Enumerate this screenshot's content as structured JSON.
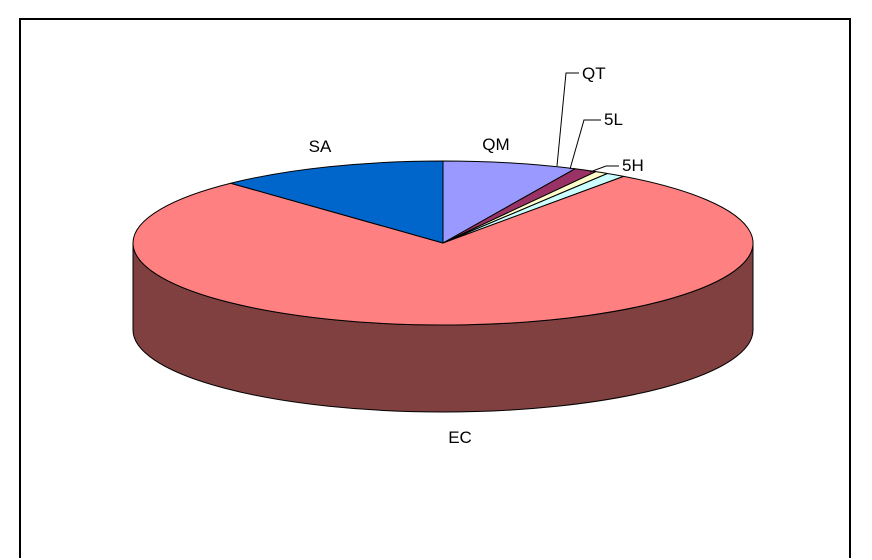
{
  "chart_data": {
    "type": "pie",
    "style": "3d",
    "title": "",
    "categories": [
      "QM",
      "QT",
      "5L",
      "5H",
      "EC",
      "SA"
    ],
    "values": [
      7.0,
      1.2,
      0.7,
      1.0,
      78.1,
      12.0
    ],
    "colors": [
      "#9999FF",
      "#993366",
      "#FFFFCC",
      "#CCFFFF",
      "#FF8080",
      "#0066CC"
    ],
    "start_angle_deg": 0,
    "direction": "clockwise",
    "legend": "none",
    "labels": {
      "QM": "QM",
      "QT": "QT",
      "5L": "5L",
      "5H": "5H",
      "EC": "EC",
      "SA": "SA"
    }
  }
}
